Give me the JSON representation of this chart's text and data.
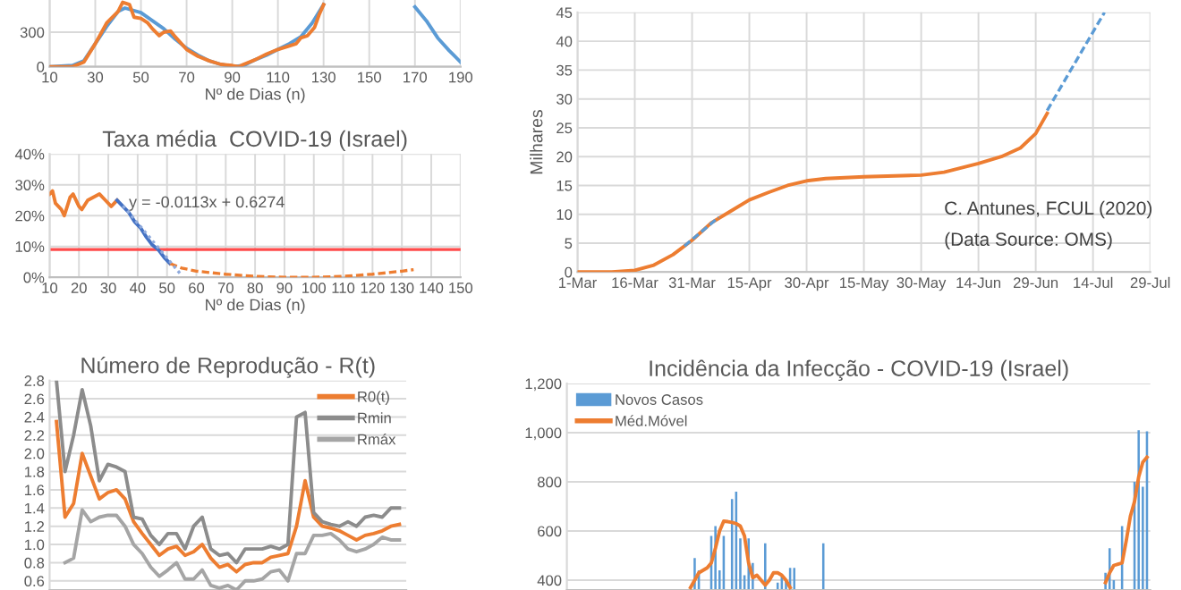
{
  "chart_data": [
    {
      "type": "line",
      "xlabel": "Nº de Dias (n)",
      "xlim": [
        10,
        190
      ],
      "xticks": [
        10,
        30,
        50,
        70,
        90,
        110,
        130,
        150,
        170,
        190
      ],
      "ylim": [
        0,
        580
      ],
      "yticks": [
        0,
        300
      ],
      "grid": true,
      "series": [
        {
          "color": "#5b9bd5",
          "x": [
            10,
            20,
            25,
            30,
            35,
            40,
            43,
            50,
            55,
            60,
            65,
            70,
            75,
            80,
            85,
            90,
            95,
            100,
            105,
            110,
            115,
            120,
            125,
            130,
            132,
            168,
            170,
            175,
            180,
            185,
            190
          ],
          "values": [
            0,
            10,
            50,
            200,
            350,
            480,
            510,
            470,
            400,
            330,
            240,
            160,
            100,
            50,
            20,
            0,
            10,
            60,
            100,
            150,
            200,
            260,
            380,
            540,
            null,
            null,
            520,
            400,
            250,
            140,
            40
          ]
        },
        {
          "color": "#ed7d31",
          "x": [
            10,
            20,
            25,
            30,
            35,
            40,
            42,
            45,
            47,
            50,
            53,
            55,
            58,
            60,
            63,
            65,
            70,
            75,
            80,
            85,
            90,
            93,
            95,
            100,
            105,
            110,
            115,
            118,
            120,
            123,
            126,
            128,
            130
          ],
          "values": [
            0,
            0,
            40,
            200,
            380,
            480,
            560,
            540,
            430,
            420,
            380,
            330,
            270,
            300,
            310,
            260,
            150,
            90,
            50,
            20,
            10,
            0,
            20,
            60,
            110,
            150,
            180,
            200,
            250,
            270,
            340,
            450,
            540
          ]
        }
      ]
    },
    {
      "type": "line",
      "title": "Taxa média  COVID-19 (Israel)",
      "xlabel": "Nº de Dias (n)",
      "xlim": [
        10,
        150
      ],
      "xticks": [
        10,
        20,
        30,
        40,
        50,
        60,
        70,
        80,
        90,
        100,
        110,
        120,
        130,
        140,
        150
      ],
      "ylim": [
        0,
        40
      ],
      "yticks": [
        {
          "value": 0,
          "label": "0%"
        },
        {
          "value": 10,
          "label": "10%"
        },
        {
          "value": 20,
          "label": "20%"
        },
        {
          "value": 30,
          "label": "30%"
        },
        {
          "value": 40,
          "label": "40%"
        }
      ],
      "grid": true,
      "ref_lines": [
        {
          "axis": "y",
          "value": 9,
          "color": "#ff4b4b"
        }
      ],
      "annotations": [
        {
          "text": "y = -0.0113x + 0.6274",
          "x": 37,
          "y": 24
        }
      ],
      "series": [
        {
          "color": "#ed7d31",
          "x": [
            10,
            11,
            12,
            14,
            15,
            17,
            18,
            20,
            21,
            23,
            25,
            27,
            29,
            31,
            33
          ],
          "values": [
            27,
            28,
            24,
            22,
            20,
            26,
            27,
            23,
            22,
            25,
            26,
            27,
            25,
            23,
            25
          ]
        },
        {
          "color": "#4472c4",
          "x": [
            33,
            35,
            37,
            39,
            41,
            43,
            45,
            47,
            49,
            51
          ],
          "values": [
            25,
            23,
            21,
            18,
            16,
            13,
            10.5,
            9,
            6.5,
            4.5
          ]
        },
        {
          "color": "#ed7d31",
          "line_style": "dashed",
          "x": [
            51,
            55,
            60,
            70,
            80,
            90,
            100,
            110,
            120,
            130,
            134
          ],
          "values": [
            4.5,
            3,
            2,
            1,
            0.3,
            0,
            0,
            0.3,
            1,
            2,
            2.5
          ]
        },
        {
          "color": "#8faadc",
          "line_style": "dotted",
          "x": [
            35,
            55
          ],
          "values": [
            23.2,
            0.6
          ]
        }
      ]
    },
    {
      "type": "line",
      "title": "Número de Reprodução - R(t)",
      "ylim": [
        0.5,
        2.8
      ],
      "yticks": [
        {
          "value": 0.6,
          "label": "0.6"
        },
        {
          "value": 0.8,
          "label": "0.8"
        },
        {
          "value": 1.0,
          "label": "1.0"
        },
        {
          "value": 1.2,
          "label": "1.2"
        },
        {
          "value": 1.4,
          "label": "1.4"
        },
        {
          "value": 1.6,
          "label": "1.6"
        },
        {
          "value": 1.8,
          "label": "1.8"
        },
        {
          "value": 2.0,
          "label": "2.0"
        },
        {
          "value": 2.2,
          "label": "2.2"
        },
        {
          "value": 2.4,
          "label": "2.4"
        },
        {
          "value": 2.6,
          "label": "2.6"
        },
        {
          "value": 2.8,
          "label": "2.8"
        }
      ],
      "grid": "y",
      "legend": "top right",
      "categories": [
        null,
        null,
        null,
        null,
        null,
        null,
        null,
        null,
        null,
        null,
        null,
        null,
        null,
        null,
        null,
        null,
        null,
        null,
        null,
        null,
        null,
        null,
        null,
        null,
        null,
        null,
        null,
        null,
        null,
        null,
        null,
        null,
        null,
        null,
        null,
        null,
        null,
        null,
        null,
        null,
        null
      ],
      "series": [
        {
          "name": "R0(t)",
          "color": "#ed7d31",
          "values": [
            2.35,
            1.3,
            1.45,
            2.0,
            1.75,
            1.5,
            1.57,
            1.6,
            1.5,
            1.25,
            1.12,
            1.0,
            0.88,
            0.95,
            0.98,
            0.88,
            0.92,
            1.0,
            0.85,
            0.75,
            0.78,
            0.7,
            0.78,
            0.8,
            0.8,
            0.86,
            0.88,
            0.9,
            1.2,
            1.7,
            1.3,
            1.2,
            1.18,
            1.15,
            1.1,
            1.05,
            1.1,
            1.12,
            1.15,
            1.2,
            1.22
          ]
        },
        {
          "name": "Rmin",
          "color": "#8c8c8c",
          "values": [
            2.8,
            1.8,
            2.2,
            2.7,
            2.3,
            1.7,
            1.88,
            1.85,
            1.8,
            1.3,
            1.28,
            1.1,
            1.0,
            1.12,
            1.12,
            0.95,
            1.2,
            1.3,
            0.95,
            0.88,
            0.9,
            0.8,
            0.95,
            0.95,
            0.95,
            0.98,
            0.95,
            1.0,
            2.4,
            2.45,
            1.35,
            1.25,
            1.22,
            1.2,
            1.25,
            1.2,
            1.3,
            1.32,
            1.3,
            1.4,
            1.4
          ]
        },
        {
          "name": "Rmáx",
          "color": "#a5a5a5",
          "values": [
            null,
            0.8,
            0.85,
            1.38,
            1.25,
            1.3,
            1.32,
            1.32,
            1.2,
            1.0,
            0.9,
            0.75,
            0.65,
            0.72,
            0.8,
            0.62,
            0.62,
            0.72,
            0.55,
            0.52,
            0.55,
            0.5,
            0.6,
            0.6,
            0.62,
            0.7,
            0.72,
            0.6,
            0.9,
            0.9,
            1.1,
            1.1,
            1.12,
            1.05,
            0.95,
            0.92,
            0.95,
            1.0,
            1.08,
            1.05,
            1.05
          ]
        }
      ]
    },
    {
      "type": "line",
      "ylabel": "Milhares",
      "xlim": [
        "2020-03-01",
        "2020-07-29"
      ],
      "xticks": [
        {
          "value": "2020-03-01",
          "label": "1-Mar"
        },
        {
          "value": "2020-03-16",
          "label": "16-Mar"
        },
        {
          "value": "2020-03-31",
          "label": "31-Mar"
        },
        {
          "value": "2020-04-15",
          "label": "15-Apr"
        },
        {
          "value": "2020-04-30",
          "label": "30-Apr"
        },
        {
          "value": "2020-05-15",
          "label": "15-May"
        },
        {
          "value": "2020-05-30",
          "label": "30-May"
        },
        {
          "value": "2020-06-14",
          "label": "14-Jun"
        },
        {
          "value": "2020-06-29",
          "label": "29-Jun"
        },
        {
          "value": "2020-07-14",
          "label": "14-Jul"
        },
        {
          "value": "2020-07-29",
          "label": "29-Jul"
        }
      ],
      "ylim": [
        0,
        45
      ],
      "yticks": [
        0,
        5,
        10,
        15,
        20,
        25,
        30,
        35,
        40,
        45
      ],
      "grid": true,
      "annotations": [
        "C. Antunes, FCUL (2020)",
        "(Data Source: OMS)"
      ],
      "series": [
        {
          "color": "#5b9bd5",
          "line_style": "dashed",
          "x": [
            "2020-03-29",
            "2020-04-07",
            "2020-04-08",
            "2020-07-02",
            "2020-07-17"
          ],
          "values": [
            4.5,
            9.5,
            null,
            28,
            45
          ]
        },
        {
          "color": "#ed7d31",
          "x": [
            "2020-03-01",
            "2020-03-10",
            "2020-03-16",
            "2020-03-21",
            "2020-03-26",
            "2020-03-31",
            "2020-04-05",
            "2020-04-10",
            "2020-04-15",
            "2020-04-20",
            "2020-04-25",
            "2020-04-30",
            "2020-05-05",
            "2020-05-15",
            "2020-05-30",
            "2020-06-05",
            "2020-06-14",
            "2020-06-20",
            "2020-06-25",
            "2020-06-29",
            "2020-07-02"
          ],
          "values": [
            0,
            0,
            0.3,
            1.2,
            3,
            5.5,
            8.5,
            10.5,
            12.5,
            13.8,
            15,
            15.8,
            16.2,
            16.5,
            16.8,
            17.3,
            18.8,
            20,
            21.5,
            24,
            27.5
          ]
        }
      ]
    },
    {
      "type": "bar",
      "title": "Incidência da Infecção - COVID-19 (Israel)",
      "ylim": [
        360,
        1200
      ],
      "yticks": [
        {
          "value": 400,
          "label": "400"
        },
        {
          "value": 600,
          "label": "600"
        },
        {
          "value": 800,
          "label": "800"
        },
        {
          "value": 1000,
          "label": "1,000"
        },
        {
          "value": 1200,
          "label": "1,200"
        }
      ],
      "grid": "y",
      "legend": "top left",
      "categories": [
        null,
        null,
        null,
        null,
        null,
        null,
        null,
        null,
        null,
        null,
        null,
        null,
        null,
        null,
        null,
        null,
        null,
        null,
        null,
        null,
        null,
        null,
        null,
        null,
        null,
        null,
        null,
        null,
        null,
        null,
        null,
        null,
        null,
        null,
        null,
        null,
        null,
        null,
        null,
        null,
        null,
        null,
        null,
        null,
        null,
        null,
        null,
        null,
        null,
        null,
        null,
        null,
        null,
        null,
        null,
        null,
        null,
        null,
        null,
        null,
        null,
        null,
        null,
        null,
        null,
        null,
        null,
        null,
        null,
        null,
        null,
        null,
        null,
        null,
        null,
        null,
        null,
        null,
        null,
        null,
        null,
        null,
        null,
        null,
        null,
        null,
        null,
        null,
        null,
        null,
        null,
        null,
        null,
        null,
        null,
        null,
        null,
        null,
        null,
        null,
        null,
        null,
        null,
        null,
        null,
        null,
        null,
        null,
        null,
        null,
        null,
        null,
        null,
        null,
        null,
        null,
        null,
        null,
        null,
        null,
        null,
        null,
        null,
        null,
        null,
        null,
        null,
        null,
        null,
        null,
        null,
        null,
        null,
        null,
        null,
        null,
        null,
        null,
        null,
        null
      ],
      "series": [
        {
          "name": "Novos Casos",
          "color": "#5b9bd5",
          "values": [
            null,
            null,
            null,
            null,
            null,
            null,
            null,
            null,
            null,
            null,
            null,
            null,
            null,
            null,
            null,
            null,
            null,
            null,
            null,
            null,
            null,
            null,
            null,
            null,
            null,
            null,
            null,
            null,
            null,
            null,
            490,
            440,
            null,
            null,
            580,
            620,
            440,
            580,
            null,
            730,
            760,
            570,
            420,
            570,
            470,
            null,
            null,
            550,
            null,
            null,
            390,
            420,
            400,
            450,
            450,
            null,
            null,
            null,
            null,
            null,
            null,
            550,
            null,
            null,
            null,
            null,
            null,
            null,
            null,
            null,
            null,
            null,
            null,
            null,
            null,
            null,
            null,
            null,
            null,
            null,
            null,
            null,
            null,
            null,
            null,
            null,
            null,
            null,
            null,
            null,
            null,
            null,
            null,
            null,
            null,
            null,
            null,
            null,
            null,
            null,
            null,
            null,
            null,
            null,
            null,
            null,
            null,
            null,
            null,
            null,
            null,
            null,
            null,
            null,
            null,
            null,
            null,
            null,
            null,
            null,
            null,
            null,
            null,
            null,
            null,
            null,
            null,
            null,
            null,
            430,
            530,
            400,
            null,
            620,
            null,
            null,
            800,
            1010,
            780,
            1005
          ]
        },
        {
          "name": "Méd.Móvel",
          "type": "line",
          "color": "#ed7d31",
          "values": [
            null,
            null,
            null,
            null,
            null,
            null,
            null,
            null,
            null,
            null,
            null,
            null,
            null,
            null,
            null,
            null,
            null,
            null,
            null,
            null,
            null,
            null,
            null,
            null,
            null,
            null,
            null,
            null,
            null,
            370,
            400,
            430,
            440,
            450,
            470,
            530,
            600,
            640,
            638,
            635,
            630,
            620,
            580,
            470,
            410,
            420,
            400,
            380,
            400,
            430,
            430,
            420,
            400,
            370,
            null,
            null,
            null,
            null,
            null,
            null,
            null,
            null,
            null,
            null,
            null,
            null,
            null,
            null,
            null,
            null,
            null,
            null,
            null,
            null,
            null,
            null,
            null,
            null,
            null,
            null,
            null,
            null,
            null,
            null,
            null,
            null,
            null,
            null,
            null,
            null,
            null,
            null,
            null,
            null,
            null,
            null,
            null,
            null,
            null,
            null,
            null,
            null,
            null,
            null,
            null,
            null,
            null,
            null,
            null,
            null,
            null,
            null,
            null,
            null,
            null,
            null,
            null,
            null,
            null,
            null,
            null,
            null,
            null,
            null,
            null,
            null,
            null,
            null,
            null,
            390,
            430,
            460,
            465,
            470,
            560,
            660,
            720,
            820,
            880,
            900
          ]
        }
      ]
    }
  ]
}
